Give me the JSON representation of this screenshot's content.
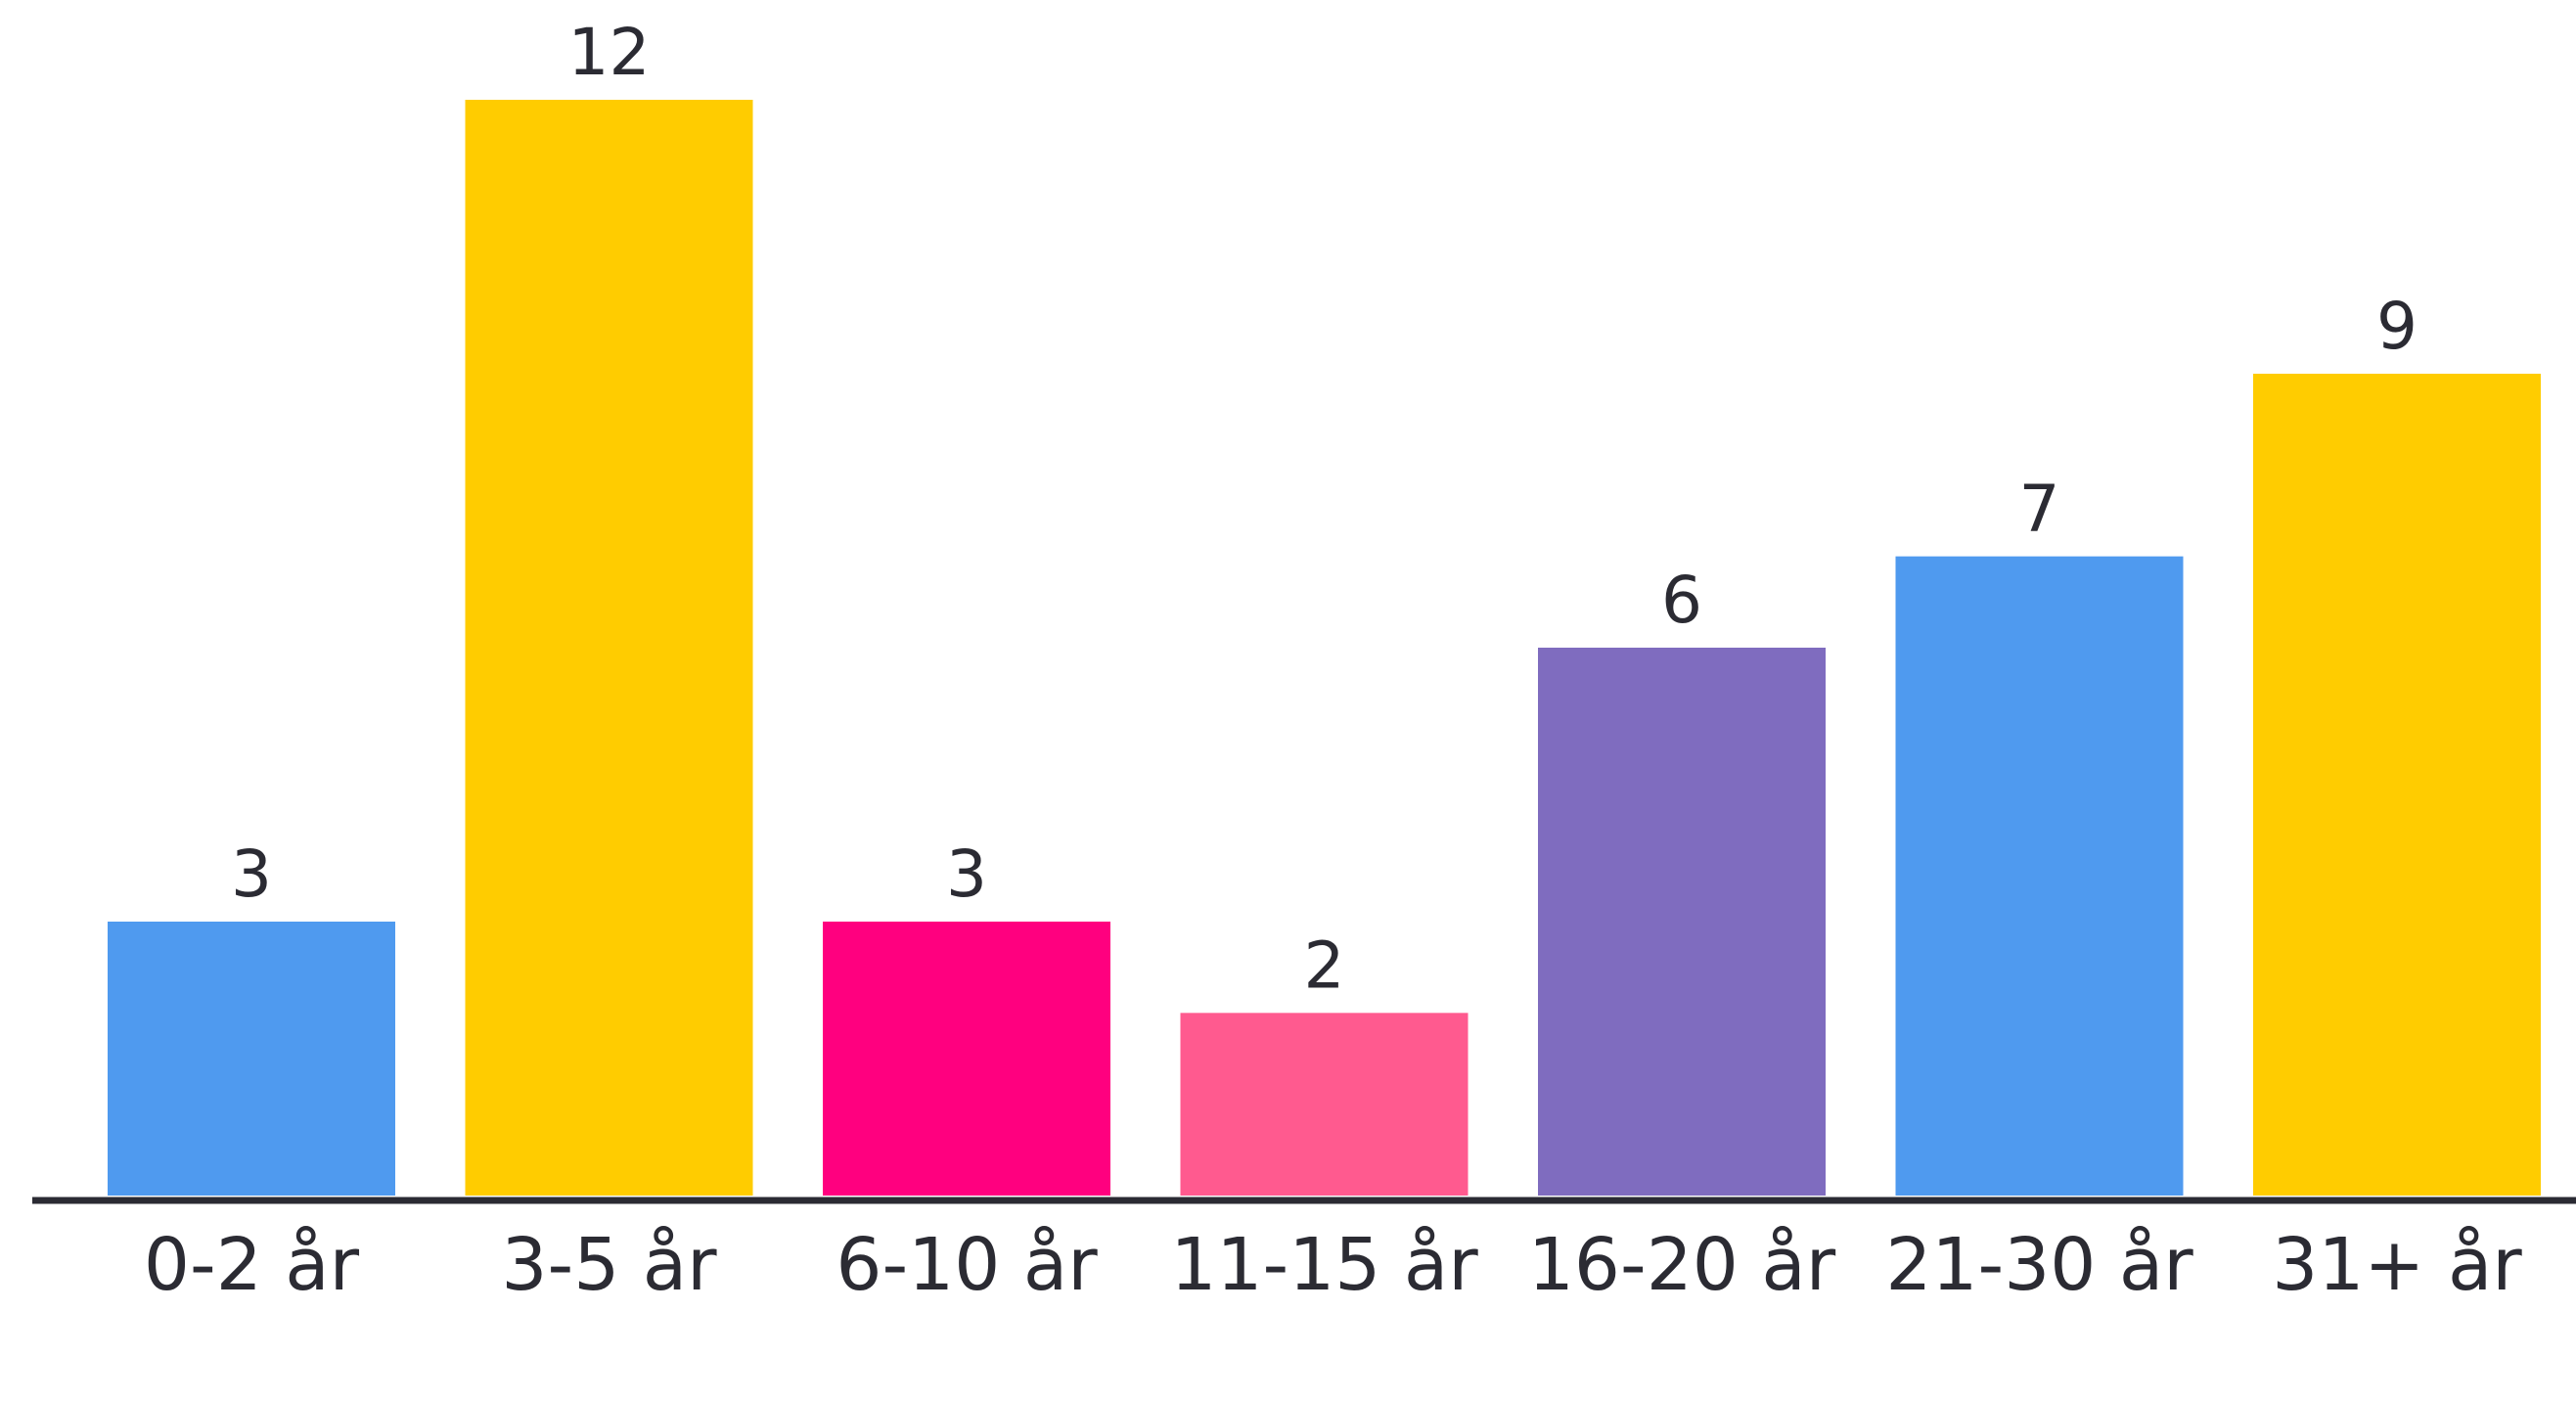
{
  "chart_data": {
    "type": "bar",
    "title": "",
    "xlabel": "",
    "ylabel": "",
    "categories": [
      "0-2 år",
      "3-5 år",
      "6-10 år",
      "11-15 år",
      "16-20 år",
      "21-30 år",
      "31+ år"
    ],
    "values": [
      3,
      12,
      3,
      2,
      6,
      7,
      9
    ],
    "colors": [
      "#4f9aef",
      "#ffcc00",
      "#ff007f",
      "#ff5a8f",
      "#7f6cbf",
      "#4f9aef",
      "#ffcc00"
    ],
    "ylim": [
      0,
      12
    ],
    "grid": false,
    "legend": "none",
    "data_labels": true,
    "axis_color": "#2b2b33"
  }
}
